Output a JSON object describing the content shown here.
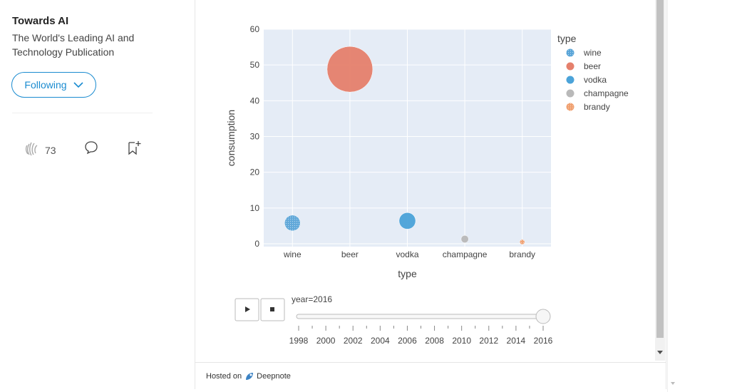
{
  "sidebar": {
    "publication_name": "Towards AI",
    "publication_tagline": "The World's Leading AI and Technology Publication",
    "follow_label": "Following",
    "clap_count": "73"
  },
  "footer": {
    "hosted_on": "Hosted on",
    "brand": "Deepnote"
  },
  "chart_data": {
    "type": "scatter",
    "xlabel": "type",
    "ylabel": "consumption",
    "categories": [
      "wine",
      "beer",
      "vodka",
      "champagne",
      "brandy"
    ],
    "ylim": [
      0,
      60
    ],
    "yticks": [
      0,
      10,
      20,
      30,
      40,
      50,
      60
    ],
    "legend_title": "type",
    "legend_position": "right",
    "grid": true,
    "series": [
      {
        "name": "wine",
        "x": "wine",
        "y": 5.8,
        "color": "#5aa5d8",
        "pattern": true
      },
      {
        "name": "beer",
        "x": "beer",
        "y": 48.8,
        "color": "#e5806c",
        "pattern": false
      },
      {
        "name": "vodka",
        "x": "vodka",
        "y": 6.4,
        "color": "#4ba3d9",
        "pattern": false
      },
      {
        "name": "champagne",
        "x": "champagne",
        "y": 1.3,
        "color": "#b9b9b9",
        "pattern": false
      },
      {
        "name": "brandy",
        "x": "brandy",
        "y": 0.5,
        "color": "#f0a070",
        "pattern": true
      }
    ],
    "slider": {
      "label": "year=2016",
      "ticks": [
        "1998",
        "2000",
        "2002",
        "2004",
        "2006",
        "2008",
        "2010",
        "2012",
        "2014",
        "2016"
      ],
      "value": "2016"
    },
    "colors": {
      "plot_bg": "#e5ecf6",
      "grid": "#ffffff",
      "axis_text": "#444444"
    }
  }
}
